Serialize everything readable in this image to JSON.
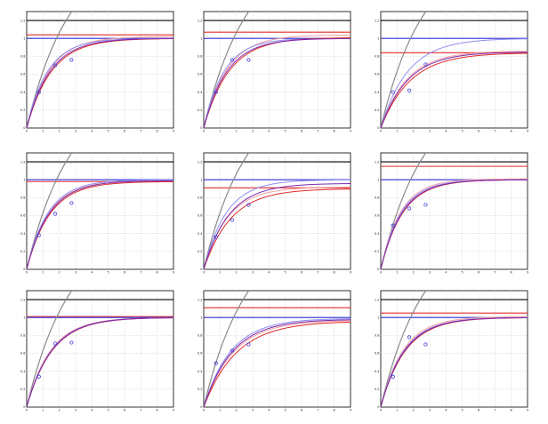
{
  "colors": {
    "black": "#000000",
    "gray": "#8a8a8a",
    "blue": "#2b2bd6",
    "light_blue": "#8f8ff0",
    "red": "#e02b2b",
    "light_red": "#f2a0a0",
    "purple": "#7a2bb0",
    "grid": "#c8c8c8"
  },
  "chart_data": [
    {
      "type": "line",
      "xlim": [
        0,
        9
      ],
      "ylim": [
        0,
        1.3
      ],
      "xticks": [
        "0",
        "1",
        "2",
        "3",
        "4",
        "5",
        "6",
        "7",
        "8",
        "9"
      ],
      "yticks": [
        "0",
        "0.2",
        "0.4",
        "0.6",
        "0.8",
        "1",
        "1.2"
      ],
      "grid": true,
      "hlines": [
        {
          "y": 1.2,
          "color": "#000000"
        },
        {
          "y": 1.04,
          "color": "#e02b2b"
        },
        {
          "y": 1.0,
          "color": "#2b2bd6"
        }
      ],
      "series": [
        {
          "kind": "fit",
          "color": "#8a8a8a",
          "asymptote": 2.0,
          "rate": 0.38
        },
        {
          "kind": "fit",
          "color": "#f2a0a0",
          "asymptote": 1.02,
          "rate": 0.72
        },
        {
          "kind": "fit",
          "color": "#8f8ff0",
          "asymptote": 1.0,
          "rate": 0.78
        },
        {
          "kind": "fit",
          "color": "#e02b2b",
          "asymptote": 1.0,
          "rate": 0.66
        },
        {
          "kind": "fit",
          "color": "#7a2bb0",
          "asymptote": 1.0,
          "rate": 0.7
        }
      ],
      "points": [
        {
          "x": 0.75,
          "y": 0.4
        },
        {
          "x": 1.75,
          "y": 0.7
        },
        {
          "x": 2.75,
          "y": 0.76
        }
      ]
    },
    {
      "type": "line",
      "xlim": [
        0,
        9
      ],
      "ylim": [
        0,
        1.3
      ],
      "xticks": [
        "0",
        "1",
        "2",
        "3",
        "4",
        "5",
        "6",
        "7",
        "8",
        "9"
      ],
      "yticks": [
        "0",
        "0.2",
        "0.4",
        "0.6",
        "0.8",
        "1",
        "1.2"
      ],
      "grid": true,
      "hlines": [
        {
          "y": 1.2,
          "color": "#000000"
        },
        {
          "y": 1.07,
          "color": "#e02b2b"
        },
        {
          "y": 1.0,
          "color": "#2b2bd6"
        }
      ],
      "series": [
        {
          "kind": "fit",
          "color": "#8a8a8a",
          "asymptote": 2.0,
          "rate": 0.38
        },
        {
          "kind": "fit",
          "color": "#f2a0a0",
          "asymptote": 1.04,
          "rate": 0.7
        },
        {
          "kind": "fit",
          "color": "#8f8ff0",
          "asymptote": 1.0,
          "rate": 0.8
        },
        {
          "kind": "fit",
          "color": "#e02b2b",
          "asymptote": 1.01,
          "rate": 0.64
        },
        {
          "kind": "fit",
          "color": "#7a2bb0",
          "asymptote": 1.0,
          "rate": 0.7
        }
      ],
      "points": [
        {
          "x": 0.75,
          "y": 0.4
        },
        {
          "x": 1.75,
          "y": 0.76
        },
        {
          "x": 2.75,
          "y": 0.76
        }
      ]
    },
    {
      "type": "line",
      "xlim": [
        0,
        9
      ],
      "ylim": [
        0,
        1.3
      ],
      "xticks": [
        "0",
        "1",
        "2",
        "3",
        "4",
        "5",
        "6",
        "7",
        "8",
        "9"
      ],
      "yticks": [
        "0",
        "0.2",
        "0.4",
        "0.6",
        "0.8",
        "1",
        "1.2"
      ],
      "grid": true,
      "hlines": [
        {
          "y": 1.2,
          "color": "#000000"
        },
        {
          "y": 1.0,
          "color": "#2b2bd6"
        },
        {
          "y": 0.84,
          "color": "#e02b2b"
        }
      ],
      "series": [
        {
          "kind": "fit",
          "color": "#8a8a8a",
          "asymptote": 2.0,
          "rate": 0.38
        },
        {
          "kind": "fit",
          "color": "#8f8ff0",
          "asymptote": 1.0,
          "rate": 0.6
        },
        {
          "kind": "fit",
          "color": "#f2a0a0",
          "asymptote": 0.86,
          "rate": 0.62
        },
        {
          "kind": "fit",
          "color": "#e02b2b",
          "asymptote": 0.84,
          "rate": 0.55
        },
        {
          "kind": "fit",
          "color": "#7a2bb0",
          "asymptote": 0.85,
          "rate": 0.6
        }
      ],
      "points": [
        {
          "x": 0.75,
          "y": 0.4
        },
        {
          "x": 1.75,
          "y": 0.42
        },
        {
          "x": 2.75,
          "y": 0.71
        }
      ]
    },
    {
      "type": "line",
      "xlim": [
        0,
        9
      ],
      "ylim": [
        0,
        1.3
      ],
      "xticks": [
        "0",
        "1",
        "2",
        "3",
        "4",
        "5",
        "6",
        "7",
        "8",
        "9"
      ],
      "yticks": [
        "0",
        "0.2",
        "0.4",
        "0.6",
        "0.8",
        "1",
        "1.2"
      ],
      "grid": true,
      "hlines": [
        {
          "y": 1.2,
          "color": "#000000"
        },
        {
          "y": 1.0,
          "color": "#2b2bd6"
        },
        {
          "y": 0.98,
          "color": "#e02b2b"
        }
      ],
      "series": [
        {
          "kind": "fit",
          "color": "#8a8a8a",
          "asymptote": 2.0,
          "rate": 0.38
        },
        {
          "kind": "fit",
          "color": "#f2a0a0",
          "asymptote": 0.99,
          "rate": 0.74
        },
        {
          "kind": "fit",
          "color": "#8f8ff0",
          "asymptote": 1.0,
          "rate": 0.76
        },
        {
          "kind": "fit",
          "color": "#e02b2b",
          "asymptote": 0.98,
          "rate": 0.7
        },
        {
          "kind": "fit",
          "color": "#7a2bb0",
          "asymptote": 0.99,
          "rate": 0.72
        }
      ],
      "points": [
        {
          "x": 0.75,
          "y": 0.38
        },
        {
          "x": 1.75,
          "y": 0.62
        },
        {
          "x": 2.75,
          "y": 0.74
        }
      ]
    },
    {
      "type": "line",
      "xlim": [
        0,
        9
      ],
      "ylim": [
        0,
        1.3
      ],
      "xticks": [
        "0",
        "1",
        "2",
        "3",
        "4",
        "5",
        "6",
        "7",
        "8",
        "9"
      ],
      "yticks": [
        "0",
        "0.2",
        "0.4",
        "0.6",
        "0.8",
        "1",
        "1.2"
      ],
      "grid": true,
      "hlines": [
        {
          "y": 1.2,
          "color": "#000000"
        },
        {
          "y": 1.0,
          "color": "#2b2bd6"
        },
        {
          "y": 0.91,
          "color": "#e02b2b"
        }
      ],
      "series": [
        {
          "kind": "fit",
          "color": "#8a8a8a",
          "asymptote": 2.0,
          "rate": 0.38
        },
        {
          "kind": "fit",
          "color": "#8f8ff0",
          "asymptote": 1.0,
          "rate": 0.72
        },
        {
          "kind": "fit",
          "color": "#f2a0a0",
          "asymptote": 0.92,
          "rate": 0.68
        },
        {
          "kind": "fit",
          "color": "#e02b2b",
          "asymptote": 0.9,
          "rate": 0.6
        },
        {
          "kind": "fit",
          "color": "#7a2bb0",
          "asymptote": 0.96,
          "rate": 0.65
        }
      ],
      "points": [
        {
          "x": 0.75,
          "y": 0.36
        },
        {
          "x": 1.75,
          "y": 0.55
        },
        {
          "x": 2.75,
          "y": 0.72
        }
      ]
    },
    {
      "type": "line",
      "xlim": [
        0,
        9
      ],
      "ylim": [
        0,
        1.3
      ],
      "xticks": [
        "0",
        "1",
        "2",
        "3",
        "4",
        "5",
        "6",
        "7",
        "8",
        "9"
      ],
      "yticks": [
        "0",
        "0.2",
        "0.4",
        "0.6",
        "0.8",
        "1",
        "1.2"
      ],
      "grid": true,
      "hlines": [
        {
          "y": 1.2,
          "color": "#000000"
        },
        {
          "y": 1.15,
          "color": "#e02b2b"
        },
        {
          "y": 1.0,
          "color": "#2b2bd6"
        }
      ],
      "series": [
        {
          "kind": "fit",
          "color": "#8a8a8a",
          "asymptote": 2.0,
          "rate": 0.38
        },
        {
          "kind": "fit",
          "color": "#f2a0a0",
          "asymptote": 1.01,
          "rate": 0.82
        },
        {
          "kind": "fit",
          "color": "#8f8ff0",
          "asymptote": 1.0,
          "rate": 0.8
        },
        {
          "kind": "fit",
          "color": "#e02b2b",
          "asymptote": 1.0,
          "rate": 0.74
        },
        {
          "kind": "fit",
          "color": "#7a2bb0",
          "asymptote": 1.0,
          "rate": 0.76
        }
      ],
      "points": [
        {
          "x": 0.75,
          "y": 0.49
        },
        {
          "x": 1.75,
          "y": 0.68
        },
        {
          "x": 2.75,
          "y": 0.72
        }
      ]
    },
    {
      "type": "line",
      "xlim": [
        0,
        9
      ],
      "ylim": [
        0,
        1.3
      ],
      "xticks": [
        "0",
        "1",
        "2",
        "3",
        "4",
        "5",
        "6",
        "7",
        "8",
        "9"
      ],
      "yticks": [
        "0",
        "0.2",
        "0.4",
        "0.6",
        "0.8",
        "1",
        "1.2"
      ],
      "grid": true,
      "hlines": [
        {
          "y": 1.2,
          "color": "#000000"
        },
        {
          "y": 1.01,
          "color": "#e02b2b"
        },
        {
          "y": 1.0,
          "color": "#2b2bd6"
        }
      ],
      "series": [
        {
          "kind": "fit",
          "color": "#8a8a8a",
          "asymptote": 2.0,
          "rate": 0.38
        },
        {
          "kind": "fit",
          "color": "#f2a0a0",
          "asymptote": 1.0,
          "rate": 0.68
        },
        {
          "kind": "fit",
          "color": "#8f8ff0",
          "asymptote": 1.0,
          "rate": 0.66
        },
        {
          "kind": "fit",
          "color": "#e02b2b",
          "asymptote": 1.0,
          "rate": 0.64
        },
        {
          "kind": "fit",
          "color": "#7a2bb0",
          "asymptote": 1.0,
          "rate": 0.65
        }
      ],
      "points": [
        {
          "x": 0.75,
          "y": 0.34
        },
        {
          "x": 1.75,
          "y": 0.71
        },
        {
          "x": 2.75,
          "y": 0.72
        }
      ]
    },
    {
      "type": "line",
      "xlim": [
        0,
        9
      ],
      "ylim": [
        0,
        1.3
      ],
      "xticks": [
        "0",
        "1",
        "2",
        "3",
        "4",
        "5",
        "6",
        "7",
        "8",
        "9"
      ],
      "yticks": [
        "0",
        "0.2",
        "0.4",
        "0.6",
        "0.8",
        "1",
        "1.2"
      ],
      "grid": true,
      "hlines": [
        {
          "y": 1.2,
          "color": "#000000"
        },
        {
          "y": 1.11,
          "color": "#e02b2b"
        },
        {
          "y": 1.0,
          "color": "#2b2bd6"
        }
      ],
      "series": [
        {
          "kind": "fit",
          "color": "#8a8a8a",
          "asymptote": 2.0,
          "rate": 0.38
        },
        {
          "kind": "fit",
          "color": "#8f8ff0",
          "asymptote": 0.99,
          "rate": 0.6
        },
        {
          "kind": "fit",
          "color": "#f2a0a0",
          "asymptote": 0.97,
          "rate": 0.55
        },
        {
          "kind": "fit",
          "color": "#e02b2b",
          "asymptote": 0.96,
          "rate": 0.5
        },
        {
          "kind": "fit",
          "color": "#7a2bb0",
          "asymptote": 0.98,
          "rate": 0.57
        }
      ],
      "points": [
        {
          "x": 0.75,
          "y": 0.49
        },
        {
          "x": 1.75,
          "y": 0.63
        },
        {
          "x": 2.75,
          "y": 0.7
        }
      ]
    },
    {
      "type": "line",
      "xlim": [
        0,
        9
      ],
      "ylim": [
        0,
        1.3
      ],
      "xticks": [
        "0",
        "1",
        "2",
        "3",
        "4",
        "5",
        "6",
        "7",
        "8",
        "9"
      ],
      "yticks": [
        "0",
        "0.2",
        "0.4",
        "0.6",
        "0.8",
        "1",
        "1.2"
      ],
      "grid": true,
      "hlines": [
        {
          "y": 1.2,
          "color": "#000000"
        },
        {
          "y": 1.05,
          "color": "#e02b2b"
        },
        {
          "y": 1.0,
          "color": "#2b2bd6"
        }
      ],
      "series": [
        {
          "kind": "fit",
          "color": "#8a8a8a",
          "asymptote": 2.0,
          "rate": 0.38
        },
        {
          "kind": "fit",
          "color": "#f2a0a0",
          "asymptote": 1.01,
          "rate": 0.72
        },
        {
          "kind": "fit",
          "color": "#8f8ff0",
          "asymptote": 1.0,
          "rate": 0.7
        },
        {
          "kind": "fit",
          "color": "#e02b2b",
          "asymptote": 1.0,
          "rate": 0.66
        },
        {
          "kind": "fit",
          "color": "#7a2bb0",
          "asymptote": 1.0,
          "rate": 0.68
        }
      ],
      "points": [
        {
          "x": 0.75,
          "y": 0.34
        },
        {
          "x": 1.75,
          "y": 0.78
        },
        {
          "x": 2.75,
          "y": 0.7
        }
      ]
    }
  ]
}
